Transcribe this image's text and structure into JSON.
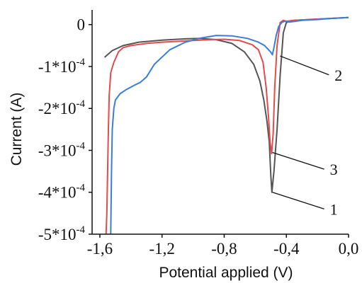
{
  "chart_data": {
    "type": "line",
    "xlabel": "Potential applied (V)",
    "ylabel": "Current (A)",
    "xlim": [
      -1.65,
      0.0
    ],
    "ylim": [
      -0.0005,
      3.5e-05
    ],
    "x_ticks": [
      {
        "value": -1.6,
        "label": "-1,6"
      },
      {
        "value": -1.2,
        "label": "-1,2"
      },
      {
        "value": -0.8,
        "label": "-0,8"
      },
      {
        "value": -0.4,
        "label": "-0,4"
      },
      {
        "value": 0.0,
        "label": "0,0"
      }
    ],
    "y_ticks": [
      {
        "value": 0,
        "base": "0",
        "exp": ""
      },
      {
        "value": -0.0001,
        "base": "-1*10",
        "exp": "-4"
      },
      {
        "value": -0.0002,
        "base": "-2*10",
        "exp": "-4"
      },
      {
        "value": -0.0003,
        "base": "-3*10",
        "exp": "-4"
      },
      {
        "value": -0.0004,
        "base": "-4*10",
        "exp": "-4"
      },
      {
        "value": -0.0005,
        "base": "-5*10",
        "exp": "-4"
      }
    ],
    "grid": false,
    "series": [
      {
        "color": "#555555",
        "x": [
          -1.57,
          -1.52,
          -1.45,
          -1.35,
          -1.2,
          -1.05,
          -0.95,
          -0.85,
          -0.75,
          -0.67,
          -0.61,
          -0.57,
          -0.545,
          -0.525,
          -0.51,
          -0.5,
          -0.493,
          -0.48,
          -0.46,
          -0.44,
          -0.42,
          -0.4,
          -0.35,
          -0.25,
          -0.1,
          0.0
        ],
        "y": [
          -7.8e-05,
          -6.2e-05,
          -5e-05,
          -4.2e-05,
          -3.7e-05,
          -3.4e-05,
          -3.3e-05,
          -3.6e-05,
          -4.5e-05,
          -6.5e-05,
          -9.5e-05,
          -0.000135,
          -0.00018,
          -0.00023,
          -0.00028,
          -0.00036,
          -0.0004,
          -0.00035,
          -0.00025,
          -0.00012,
          -2e-05,
          5e-06,
          1e-05,
          1.2e-05,
          1.5e-05,
          1.7e-05
        ]
      },
      {
        "color": "#e64a4a",
        "x": [
          -1.56,
          -1.555,
          -1.55,
          -1.545,
          -1.54,
          -1.53,
          -1.51,
          -1.48,
          -1.45,
          -1.4,
          -1.3,
          -1.2,
          -1.0,
          -0.9,
          -0.8,
          -0.7,
          -0.62,
          -0.58,
          -0.55,
          -0.53,
          -0.515,
          -0.505,
          -0.495,
          -0.485,
          -0.475,
          -0.46,
          -0.44,
          -0.42,
          -0.4,
          -0.35,
          -0.2,
          0.0
        ],
        "y": [
          -0.0005,
          -0.00045,
          -0.00035,
          -0.00025,
          -0.00017,
          -0.000115,
          -9e-05,
          -6.5e-05,
          -5.5e-05,
          -5e-05,
          -4.5e-05,
          -4.2e-05,
          -3.8e-05,
          -3.6e-05,
          -3.5e-05,
          -3.8e-05,
          -4.8e-05,
          -6e-05,
          -9e-05,
          -0.00015,
          -0.00022,
          -0.00028,
          -0.000308,
          -0.00026,
          -0.00015,
          -5e-05,
          5e-06,
          1e-05,
          8e-06,
          1e-05,
          1.3e-05,
          1.7e-05
        ]
      },
      {
        "color": "#3b7dd8",
        "x": [
          -1.53,
          -1.525,
          -1.52,
          -1.51,
          -1.5,
          -1.47,
          -1.43,
          -1.38,
          -1.34,
          -1.3,
          -1.25,
          -1.15,
          -1.05,
          -0.95,
          -0.85,
          -0.75,
          -0.65,
          -0.58,
          -0.54,
          -0.52,
          -0.5,
          -0.49,
          -0.48,
          -0.465,
          -0.45,
          -0.43,
          -0.41,
          -0.38,
          -0.3,
          -0.2,
          -0.1,
          0.0
        ],
        "y": [
          -0.0005,
          -0.00035,
          -0.00025,
          -0.0002,
          -0.00018,
          -0.000165,
          -0.000155,
          -0.000145,
          -0.000138,
          -0.000125,
          -9.5e-05,
          -6e-05,
          -4.2e-05,
          -3.2e-05,
          -2.6e-05,
          -2.7e-05,
          -3.3e-05,
          -4.2e-05,
          -5e-05,
          -5.8e-05,
          -6.6e-05,
          -7.2e-05,
          -5.5e-05,
          -2.5e-05,
          -5e-06,
          5e-06,
          8e-06,
          6e-06,
          1e-05,
          1.2e-05,
          1.5e-05,
          1.7e-05
        ]
      }
    ],
    "annotations": [
      {
        "text": "2",
        "x": -0.44,
        "y": -7.5e-05,
        "label_x": -0.09,
        "label_y": -0.00013
      },
      {
        "text": "3",
        "x": -0.49,
        "y": -0.000305,
        "label_x": -0.12,
        "label_y": -0.000355
      },
      {
        "text": "1",
        "x": -0.49,
        "y": -0.0004,
        "label_x": -0.12,
        "label_y": -0.00045
      }
    ]
  }
}
